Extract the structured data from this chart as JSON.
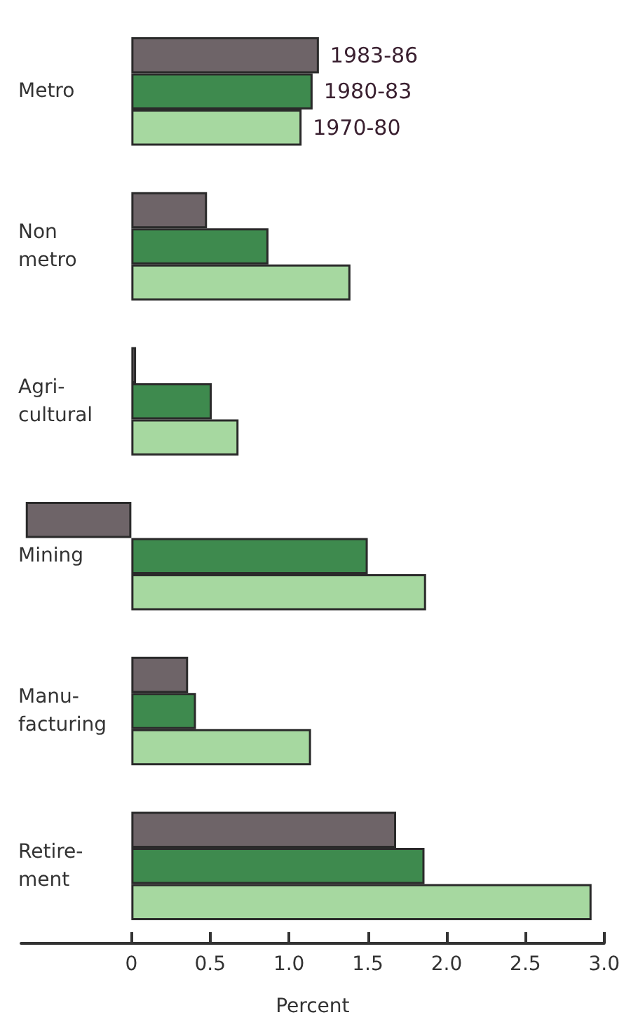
{
  "chart_data": {
    "type": "bar",
    "orientation": "horizontal",
    "categories": [
      "Metro",
      "Non\nmetro",
      "Agri-\ncultural",
      "Mining",
      "Manu-\nfacturing",
      "Retire-\nment"
    ],
    "series": [
      {
        "name": "1983-86",
        "color": "#6e6468",
        "values": [
          1.19,
          0.48,
          0.03,
          -0.67,
          0.36,
          1.68
        ]
      },
      {
        "name": "1980-83",
        "color": "#3e8a4e",
        "values": [
          1.15,
          0.87,
          0.51,
          1.5,
          0.41,
          1.86
        ]
      },
      {
        "name": "1970-80",
        "color": "#a6d8a0",
        "values": [
          1.08,
          1.39,
          0.68,
          1.87,
          1.14,
          2.92
        ]
      }
    ],
    "xlabel": "Percent",
    "xlim": [
      -0.7,
      3
    ],
    "xticks": [
      0,
      0.5,
      {
        "value": 1,
        "label": "1.0"
      },
      1.5,
      {
        "value": 2,
        "label": "2.0"
      },
      2.5,
      {
        "value": 3,
        "label": "3.0"
      }
    ],
    "grid": false,
    "legend": false
  }
}
